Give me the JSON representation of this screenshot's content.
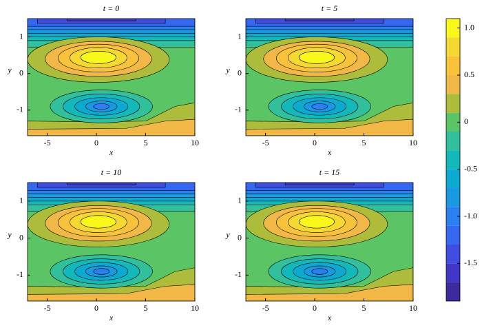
{
  "chart_data": [
    {
      "type": "contour",
      "title": "t = 0",
      "xlabel": "x",
      "ylabel": "y",
      "xlim": [
        -7,
        10
      ],
      "ylim": [
        -1.7,
        1.5
      ],
      "xticks": [
        -5,
        0,
        5,
        10
      ],
      "yticks": [
        -1,
        0,
        1
      ]
    },
    {
      "type": "contour",
      "title": "t = 5",
      "xlabel": "x",
      "ylabel": "y",
      "xlim": [
        -7,
        10
      ],
      "ylim": [
        -1.7,
        1.5
      ],
      "xticks": [
        -5,
        0,
        5,
        10
      ],
      "yticks": [
        -1,
        0,
        1
      ]
    },
    {
      "type": "contour",
      "title": "t = 10",
      "xlabel": "x",
      "ylabel": "y",
      "xlim": [
        -7,
        10
      ],
      "ylim": [
        -1.7,
        1.5
      ],
      "xticks": [
        -5,
        0,
        5,
        10
      ],
      "yticks": [
        -1,
        0,
        1
      ]
    },
    {
      "type": "contour",
      "title": "t = 15",
      "xlabel": "x",
      "ylabel": "y",
      "xlim": [
        -7,
        10
      ],
      "ylim": [
        -1.7,
        1.5
      ],
      "xticks": [
        -5,
        0,
        5,
        10
      ],
      "yticks": [
        -1,
        0,
        1
      ]
    },
    {
      "type": "colorbar",
      "ylim": [
        -1.9,
        1.1
      ],
      "levels": [
        -1.9,
        -1.7,
        -1.5,
        -1.3,
        -1.1,
        -0.9,
        -0.7,
        -0.5,
        -0.3,
        -0.1,
        0.1,
        0.3,
        0.5,
        0.7,
        0.9,
        1.1
      ],
      "colors": [
        "#3d2a9b",
        "#4136c7",
        "#3f4ee0",
        "#3567f0",
        "#2a80f0",
        "#1a98e0",
        "#0caad0",
        "#13b8bb",
        "#31bf9c",
        "#5bc566",
        "#adbd3b",
        "#f2b847",
        "#f8c23a",
        "#f6d930",
        "#f9f81b"
      ],
      "yticks": [
        {
          "value": 1,
          "label": "1.0"
        },
        0.5,
        0,
        -0.5,
        {
          "value": -1,
          "label": "-1.0"
        },
        -1.5
      ]
    }
  ]
}
